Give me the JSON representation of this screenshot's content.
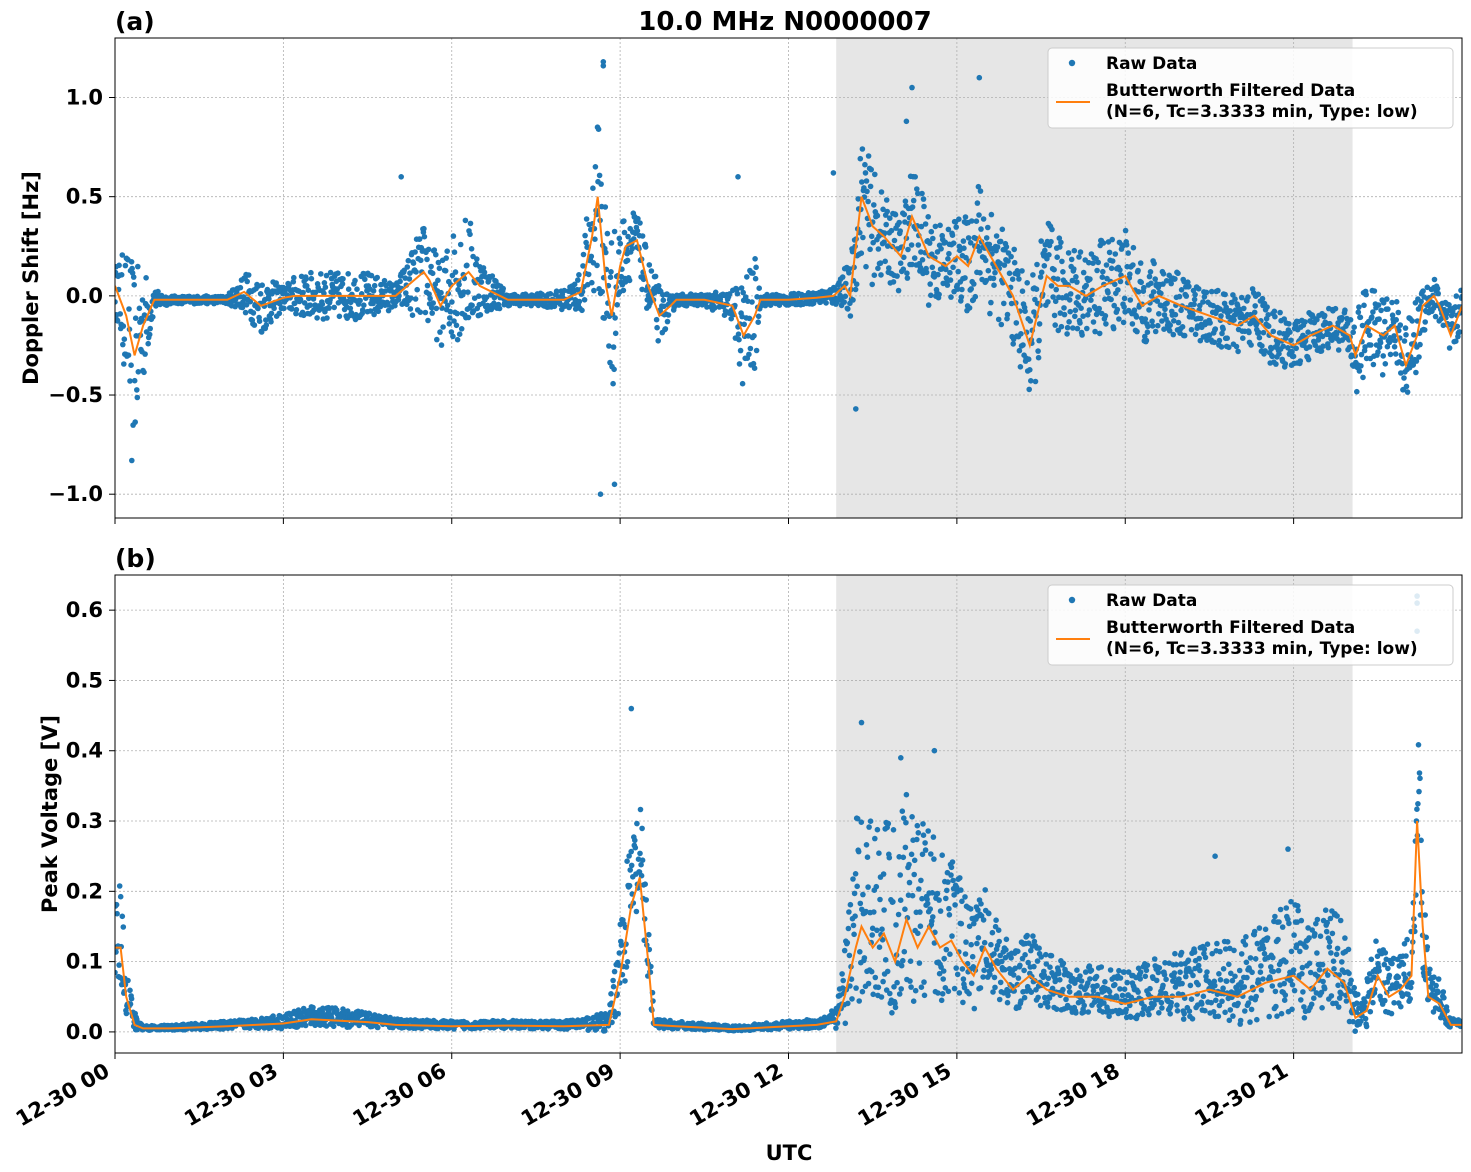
{
  "figure": {
    "title": "10.0 MHz N0000007",
    "xlabel": "UTC"
  },
  "chart_data": [
    {
      "type": "line",
      "panel_label": "(a)",
      "ylabel": "Doppler Shift [Hz]",
      "ylim": [
        -1.12,
        1.3
      ],
      "yticks": [
        -1.0,
        -0.5,
        0.0,
        0.5,
        1.0
      ],
      "ytick_labels": [
        "−1.0",
        "−0.5",
        "0.0",
        "0.5",
        "1.0"
      ],
      "x_unit": "hours UTC, 2025-12-30",
      "xlim": [
        0,
        24
      ],
      "xticks": [
        0,
        3,
        6,
        9,
        12,
        15,
        18,
        21
      ],
      "xtick_labels": [
        "12-30 00",
        "12-30 03",
        "12-30 06",
        "12-30 09",
        "12-30 12",
        "12-30 15",
        "12-30 18",
        "12-30 21"
      ],
      "shaded_span": [
        12.85,
        22.05
      ],
      "grid": true,
      "legend_placement": "top-right",
      "legend": [
        "Raw Data",
        "Butterworth Filtered Data",
        "(N=6, Tc=3.3333 min, Type: low)"
      ],
      "series": [
        {
          "name": "Butterworth Filtered Data",
          "color": "#ff7f0e",
          "x": [
            0,
            0.2,
            0.35,
            0.5,
            0.7,
            1,
            2,
            2.3,
            2.6,
            3,
            3.2,
            3.5,
            4,
            4.5,
            5,
            5.5,
            5.6,
            5.8,
            6,
            6.3,
            6.5,
            7,
            7.5,
            8,
            8.3,
            8.5,
            8.6,
            8.75,
            8.85,
            9,
            9.1,
            9.3,
            9.5,
            9.7,
            9.9,
            10,
            10.5,
            11,
            11.2,
            11.4,
            11.5,
            12,
            12.5,
            12.8,
            13,
            13.1,
            13.3,
            13.5,
            13.7,
            14,
            14.2,
            14.5,
            14.8,
            15,
            15.2,
            15.4,
            15.6,
            15.8,
            16,
            16.3,
            16.6,
            16.8,
            17,
            17.3,
            17.6,
            18,
            18.3,
            18.6,
            19,
            19.5,
            20,
            20.3,
            20.6,
            21,
            21.3,
            21.7,
            22,
            22.1,
            22.3,
            22.6,
            22.8,
            23,
            23.2,
            23.3,
            23.5,
            23.6,
            23.8,
            24
          ],
          "y": [
            0.05,
            -0.1,
            -0.3,
            -0.15,
            -0.02,
            -0.02,
            -0.02,
            0.02,
            -0.05,
            -0.01,
            0.0,
            0.0,
            0.0,
            0.0,
            0.0,
            0.12,
            0.08,
            -0.05,
            0.05,
            0.12,
            0.05,
            -0.02,
            -0.02,
            -0.02,
            0.02,
            0.3,
            0.5,
            0.05,
            -0.1,
            0.15,
            0.25,
            0.28,
            0.05,
            -0.1,
            -0.05,
            -0.02,
            -0.02,
            -0.05,
            -0.2,
            -0.1,
            -0.02,
            -0.02,
            -0.01,
            0.0,
            0.05,
            0.0,
            0.5,
            0.35,
            0.3,
            0.2,
            0.4,
            0.2,
            0.15,
            0.2,
            0.15,
            0.3,
            0.2,
            0.1,
            0.0,
            -0.25,
            0.1,
            0.05,
            0.05,
            0.0,
            0.05,
            0.1,
            -0.05,
            0.0,
            -0.05,
            -0.1,
            -0.15,
            -0.1,
            -0.2,
            -0.25,
            -0.2,
            -0.15,
            -0.2,
            -0.3,
            -0.15,
            -0.2,
            -0.15,
            -0.35,
            -0.2,
            -0.05,
            0.0,
            -0.05,
            -0.2,
            -0.05
          ]
        },
        {
          "name": "Raw Data",
          "color": "#1f77b4",
          "x": [
            0,
            0.2,
            0.35,
            0.5,
            0.7,
            1,
            2,
            2.3,
            2.6,
            3,
            3.2,
            3.5,
            4,
            4.5,
            5,
            5.5,
            5.6,
            5.8,
            6,
            6.3,
            6.5,
            7,
            7.5,
            8,
            8.3,
            8.5,
            8.6,
            8.75,
            8.85,
            9,
            9.1,
            9.3,
            9.5,
            9.7,
            9.9,
            10,
            10.5,
            11,
            11.2,
            11.4,
            11.5,
            12,
            12.5,
            12.8,
            13,
            13.1,
            13.3,
            13.5,
            13.7,
            14,
            14.2,
            14.5,
            14.8,
            15,
            15.2,
            15.4,
            15.6,
            15.8,
            16,
            16.3,
            16.6,
            16.8,
            17,
            17.3,
            17.6,
            18,
            18.3,
            18.6,
            19,
            19.5,
            20,
            20.3,
            20.6,
            21,
            21.3,
            21.7,
            22,
            22.1,
            22.3,
            22.6,
            22.8,
            23,
            23.2,
            23.3,
            23.5,
            23.6,
            23.8,
            24
          ],
          "spread": [
            0.1,
            0.35,
            0.45,
            0.3,
            0.05,
            0.02,
            0.02,
            0.1,
            0.15,
            0.06,
            0.1,
            0.12,
            0.12,
            0.12,
            0.06,
            0.25,
            0.25,
            0.2,
            0.3,
            0.3,
            0.15,
            0.03,
            0.03,
            0.05,
            0.1,
            0.35,
            0.4,
            0.5,
            0.45,
            0.2,
            0.2,
            0.15,
            0.15,
            0.15,
            0.05,
            0.03,
            0.03,
            0.08,
            0.3,
            0.3,
            0.03,
            0.03,
            0.03,
            0.05,
            0.1,
            0.15,
            0.3,
            0.3,
            0.2,
            0.2,
            0.25,
            0.25,
            0.2,
            0.2,
            0.25,
            0.3,
            0.3,
            0.25,
            0.25,
            0.3,
            0.3,
            0.25,
            0.25,
            0.2,
            0.25,
            0.25,
            0.2,
            0.2,
            0.15,
            0.15,
            0.15,
            0.15,
            0.15,
            0.12,
            0.12,
            0.1,
            0.12,
            0.25,
            0.2,
            0.2,
            0.15,
            0.2,
            0.2,
            0.15,
            0.1,
            0.1,
            0.15,
            0.1
          ],
          "outliers": [
            [
              8.7,
              1.18
            ],
            [
              8.7,
              1.16
            ],
            [
              8.65,
              -1.0
            ],
            [
              8.9,
              -0.95
            ],
            [
              13.2,
              -0.57
            ],
            [
              14.2,
              1.05
            ],
            [
              15.4,
              1.1
            ],
            [
              0.3,
              -0.83
            ],
            [
              11.1,
              0.6
            ],
            [
              12.8,
              0.62
            ],
            [
              14.1,
              0.88
            ],
            [
              5.1,
              0.6
            ]
          ]
        }
      ]
    },
    {
      "type": "line",
      "panel_label": "(b)",
      "ylabel": "Peak Voltage [V]",
      "ylim": [
        -0.03,
        0.65
      ],
      "yticks": [
        0.0,
        0.1,
        0.2,
        0.3,
        0.4,
        0.5,
        0.6
      ],
      "ytick_labels": [
        "0.0",
        "0.1",
        "0.2",
        "0.3",
        "0.4",
        "0.5",
        "0.6"
      ],
      "x_unit": "hours UTC, 2025-12-30",
      "xlim": [
        0,
        24
      ],
      "xticks": [
        0,
        3,
        6,
        9,
        12,
        15,
        18,
        21
      ],
      "xtick_labels": [
        "12-30 00",
        "12-30 03",
        "12-30 06",
        "12-30 09",
        "12-30 12",
        "12-30 15",
        "12-30 18",
        "12-30 21"
      ],
      "shaded_span": [
        12.85,
        22.05
      ],
      "grid": true,
      "legend_placement": "top-right",
      "legend": [
        "Raw Data",
        "Butterworth Filtered Data",
        "(N=6, Tc=3.3333 min, Type: low)"
      ],
      "series": [
        {
          "name": "Butterworth Filtered Data",
          "color": "#ff7f0e",
          "x": [
            0,
            0.1,
            0.2,
            0.35,
            0.5,
            1,
            2,
            2.5,
            3,
            3.5,
            4,
            4.5,
            5,
            6,
            7,
            8,
            8.8,
            9,
            9.2,
            9.35,
            9.5,
            9.6,
            10,
            11,
            12,
            12.5,
            12.85,
            13,
            13.2,
            13.3,
            13.5,
            13.7,
            13.9,
            14.1,
            14.3,
            14.5,
            14.7,
            14.9,
            15.1,
            15.3,
            15.5,
            15.7,
            16,
            16.3,
            16.6,
            17,
            17.5,
            18,
            18.5,
            19,
            19.5,
            20,
            20.5,
            21,
            21.3,
            21.6,
            21.9,
            22.1,
            22.3,
            22.5,
            22.7,
            22.9,
            23.1,
            23.2,
            23.3,
            23.4,
            23.6,
            23.8,
            24
          ],
          "y": [
            0.12,
            0.12,
            0.05,
            0.01,
            0.005,
            0.005,
            0.008,
            0.01,
            0.012,
            0.018,
            0.016,
            0.014,
            0.01,
            0.008,
            0.009,
            0.008,
            0.01,
            0.08,
            0.18,
            0.22,
            0.1,
            0.01,
            0.008,
            0.004,
            0.008,
            0.01,
            0.015,
            0.05,
            0.12,
            0.15,
            0.12,
            0.14,
            0.1,
            0.16,
            0.12,
            0.15,
            0.12,
            0.13,
            0.1,
            0.08,
            0.12,
            0.09,
            0.06,
            0.08,
            0.06,
            0.05,
            0.05,
            0.04,
            0.05,
            0.05,
            0.06,
            0.05,
            0.07,
            0.08,
            0.06,
            0.09,
            0.07,
            0.02,
            0.03,
            0.08,
            0.05,
            0.06,
            0.08,
            0.3,
            0.15,
            0.05,
            0.04,
            0.01,
            0.01
          ]
        },
        {
          "name": "Raw Data",
          "color": "#1f77b4",
          "x": [
            0,
            0.1,
            0.2,
            0.35,
            0.5,
            1,
            2,
            2.5,
            3,
            3.5,
            4,
            4.5,
            5,
            6,
            7,
            8,
            8.8,
            9,
            9.2,
            9.35,
            9.5,
            9.6,
            10,
            11,
            12,
            12.5,
            12.85,
            13,
            13.2,
            13.3,
            13.5,
            13.7,
            13.9,
            14.1,
            14.3,
            14.5,
            14.7,
            14.9,
            15.1,
            15.3,
            15.5,
            15.7,
            16,
            16.3,
            16.6,
            17,
            17.5,
            18,
            18.5,
            19,
            19.5,
            20,
            20.5,
            21,
            21.3,
            21.6,
            21.9,
            22.1,
            22.3,
            22.5,
            22.7,
            22.9,
            23.1,
            23.2,
            23.3,
            23.4,
            23.6,
            23.8,
            24
          ],
          "spread": [
            0.1,
            0.1,
            0.06,
            0.02,
            0.005,
            0.005,
            0.008,
            0.01,
            0.015,
            0.02,
            0.02,
            0.015,
            0.01,
            0.008,
            0.008,
            0.008,
            0.02,
            0.1,
            0.12,
            0.12,
            0.1,
            0.01,
            0.008,
            0.005,
            0.008,
            0.01,
            0.02,
            0.08,
            0.2,
            0.2,
            0.2,
            0.2,
            0.2,
            0.2,
            0.2,
            0.18,
            0.16,
            0.14,
            0.12,
            0.1,
            0.1,
            0.08,
            0.07,
            0.07,
            0.06,
            0.05,
            0.05,
            0.05,
            0.06,
            0.07,
            0.08,
            0.09,
            0.1,
            0.12,
            0.1,
            0.1,
            0.1,
            0.04,
            0.05,
            0.07,
            0.06,
            0.06,
            0.08,
            0.2,
            0.12,
            0.05,
            0.04,
            0.01,
            0.01
          ],
          "outliers": [
            [
              23.2,
              0.62
            ],
            [
              23.2,
              0.61
            ],
            [
              23.2,
              0.57
            ],
            [
              13.3,
              0.44
            ],
            [
              14.6,
              0.4
            ],
            [
              9.2,
              0.46
            ],
            [
              14.0,
              0.39
            ],
            [
              19.6,
              0.25
            ],
            [
              20.9,
              0.26
            ]
          ]
        }
      ]
    }
  ]
}
